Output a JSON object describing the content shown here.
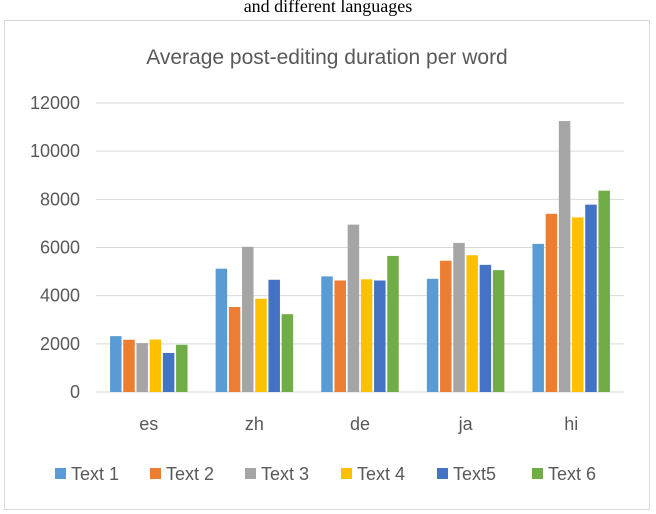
{
  "caption_fragment": "and different languages",
  "chart_data": {
    "type": "bar",
    "title": "Average post-editing duration per word",
    "categories": [
      "es",
      "zh",
      "de",
      "ja",
      "hi"
    ],
    "ylim": [
      0,
      12000
    ],
    "yticks": [
      0,
      2000,
      4000,
      6000,
      8000,
      10000,
      12000
    ],
    "grid": true,
    "legend_position": "bottom",
    "series": [
      {
        "name": "Text 1",
        "color": "#5b9bd5",
        "values": [
          2320,
          5120,
          4800,
          4700,
          6150
        ]
      },
      {
        "name": "Text 2",
        "color": "#ed7d31",
        "values": [
          2170,
          3530,
          4630,
          5450,
          7400
        ]
      },
      {
        "name": "Text 3",
        "color": "#a5a5a5",
        "values": [
          2030,
          6030,
          6950,
          6190,
          11250
        ]
      },
      {
        "name": "Text 4",
        "color": "#ffc000",
        "values": [
          2180,
          3870,
          4680,
          5680,
          7250
        ]
      },
      {
        "name": "Text5",
        "color": "#4472c4",
        "values": [
          1620,
          4660,
          4630,
          5280,
          7780
        ]
      },
      {
        "name": "Text 6",
        "color": "#70ad47",
        "values": [
          1960,
          3230,
          5650,
          5060,
          8360
        ]
      }
    ]
  }
}
